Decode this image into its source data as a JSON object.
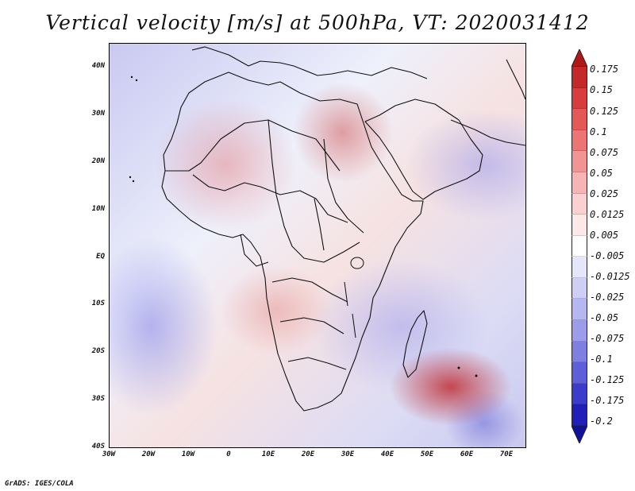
{
  "title": "Vertical velocity [m/s] at 500hPa, VT: 2020031412",
  "map": {
    "region": "Africa",
    "lat_labels": [
      "40N",
      "30N",
      "20N",
      "10N",
      "EQ",
      "10S",
      "20S",
      "30S",
      "40S"
    ],
    "lon_labels": [
      "30W",
      "20W",
      "10W",
      "0",
      "10E",
      "20E",
      "30E",
      "40E",
      "50E",
      "60E",
      "70E"
    ]
  },
  "colorbar": {
    "labels": [
      "0.175",
      "0.15",
      "0.125",
      "0.1",
      "0.075",
      "0.05",
      "0.025",
      "0.0125",
      "0.005",
      "-0.005",
      "-0.0125",
      "-0.025",
      "-0.05",
      "-0.075",
      "-0.1",
      "-0.125",
      "-0.175",
      "-0.2"
    ],
    "colors": [
      "#b01818",
      "#c42828",
      "#d83c3c",
      "#e45858",
      "#ec7474",
      "#f29494",
      "#f6b4b4",
      "#fad0d0",
      "#fde8e8",
      "#ffffff",
      "#e6e6fb",
      "#cfcff6",
      "#b6b6f0",
      "#9c9cea",
      "#7f7fe2",
      "#5e5ed8",
      "#3c3ccc",
      "#2020b8",
      "#10109a"
    ]
  },
  "credit": "GrADS: IGES/COLA"
}
